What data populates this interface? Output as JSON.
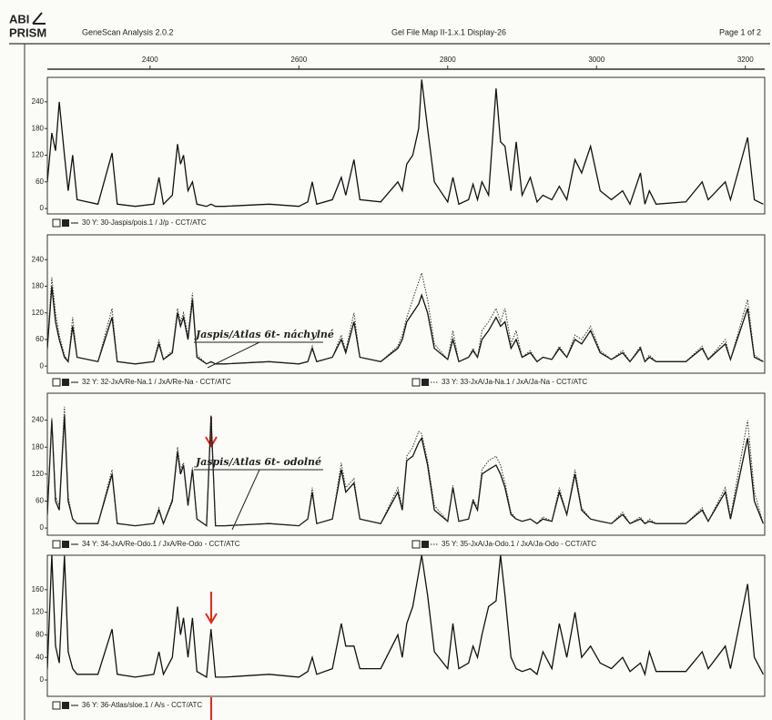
{
  "header": {
    "logo_top": "ABI",
    "logo_bottom": "PRISM",
    "software": "GeneScan Analysis 2.0.2",
    "file": "Gel File Map II-1.x.1 Display-26",
    "page": "Page 1 of 2"
  },
  "chart_data": [
    {
      "type": "line",
      "xlim": [
        2262,
        3226
      ],
      "xticks": [
        2400,
        2600,
        2800,
        3000,
        3200
      ],
      "ylim": [
        -12,
        295
      ],
      "yticks": [
        0,
        60,
        120,
        180,
        240
      ],
      "x": [
        2262,
        2268,
        2273,
        2278,
        2285,
        2290,
        2296,
        2302,
        2330,
        2349,
        2356,
        2380,
        2405,
        2412,
        2418,
        2430,
        2437,
        2441,
        2445,
        2451,
        2457,
        2463,
        2476,
        2482,
        2488,
        2500,
        2560,
        2600,
        2612,
        2618,
        2624,
        2645,
        2657,
        2663,
        2674,
        2682,
        2710,
        2733,
        2739,
        2745,
        2753,
        2761,
        2765,
        2773,
        2782,
        2800,
        2807,
        2815,
        2828,
        2834,
        2840,
        2846,
        2855,
        2865,
        2871,
        2877,
        2885,
        2892,
        2900,
        2911,
        2920,
        2928,
        2940,
        2950,
        2960,
        2971,
        2980,
        2992,
        3005,
        3020,
        3035,
        3045,
        3059,
        3065,
        3071,
        3080,
        3120,
        3142,
        3150,
        3173,
        3180,
        3203,
        3212,
        3224
      ],
      "series": [
        {
          "name": "30 Y: 30-Jaspis/pois.1 / J/p - CCT/ATC",
          "color": "#111111",
          "style": "solid",
          "values": [
            60,
            170,
            130,
            240,
            120,
            40,
            120,
            20,
            10,
            125,
            10,
            5,
            10,
            70,
            10,
            30,
            145,
            100,
            120,
            40,
            60,
            10,
            5,
            10,
            5,
            5,
            10,
            5,
            15,
            60,
            10,
            20,
            70,
            30,
            110,
            20,
            15,
            60,
            40,
            100,
            120,
            180,
            290,
            180,
            60,
            15,
            70,
            10,
            20,
            55,
            20,
            60,
            30,
            270,
            150,
            140,
            40,
            150,
            30,
            70,
            15,
            30,
            20,
            50,
            20,
            110,
            80,
            140,
            40,
            20,
            40,
            10,
            80,
            10,
            40,
            10,
            15,
            60,
            20,
            60,
            20,
            160,
            20,
            10
          ]
        }
      ]
    },
    {
      "type": "line",
      "xlim": [
        2262,
        3226
      ],
      "ylim": [
        -16,
        296
      ],
      "yticks": [
        0,
        60,
        120,
        180,
        240
      ],
      "annotation": "Jaspis/Atlas 6t- náchylné",
      "x": [
        2262,
        2268,
        2273,
        2278,
        2285,
        2290,
        2296,
        2302,
        2330,
        2349,
        2356,
        2380,
        2405,
        2412,
        2418,
        2430,
        2437,
        2441,
        2445,
        2451,
        2457,
        2463,
        2476,
        2482,
        2488,
        2500,
        2560,
        2600,
        2612,
        2618,
        2624,
        2645,
        2657,
        2663,
        2674,
        2682,
        2710,
        2733,
        2739,
        2745,
        2753,
        2761,
        2765,
        2773,
        2782,
        2800,
        2807,
        2815,
        2828,
        2834,
        2840,
        2846,
        2855,
        2865,
        2871,
        2877,
        2885,
        2892,
        2900,
        2911,
        2920,
        2928,
        2940,
        2950,
        2960,
        2971,
        2980,
        2992,
        3005,
        3020,
        3035,
        3045,
        3059,
        3065,
        3071,
        3080,
        3120,
        3142,
        3150,
        3173,
        3180,
        3203,
        3212,
        3224
      ],
      "series": [
        {
          "name": "32 Y: 32-JxA/Re-Na.1 / JxA/Re-Na - CCT/ATC",
          "color": "#111111",
          "style": "solid",
          "values": [
            40,
            180,
            100,
            60,
            20,
            10,
            90,
            20,
            10,
            110,
            10,
            5,
            10,
            50,
            15,
            30,
            120,
            90,
            110,
            60,
            150,
            20,
            5,
            10,
            5,
            5,
            10,
            5,
            10,
            40,
            10,
            20,
            60,
            30,
            100,
            20,
            10,
            40,
            60,
            100,
            120,
            140,
            160,
            120,
            40,
            15,
            60,
            10,
            20,
            35,
            20,
            60,
            80,
            110,
            90,
            100,
            40,
            60,
            20,
            30,
            10,
            20,
            15,
            40,
            20,
            60,
            50,
            80,
            30,
            15,
            30,
            10,
            40,
            10,
            20,
            10,
            10,
            40,
            15,
            50,
            15,
            130,
            20,
            10
          ]
        },
        {
          "name": "33 Y: 33-JxA/Ja-Na.1 / JxA/Ja-Na - CCT/ATC",
          "color": "#333333",
          "style": "dotted",
          "values": [
            50,
            200,
            120,
            70,
            25,
            10,
            110,
            20,
            10,
            130,
            10,
            5,
            10,
            60,
            15,
            35,
            130,
            100,
            120,
            70,
            165,
            25,
            5,
            10,
            5,
            5,
            10,
            5,
            10,
            45,
            10,
            20,
            70,
            35,
            120,
            20,
            10,
            45,
            70,
            110,
            150,
            190,
            210,
            150,
            50,
            15,
            80,
            10,
            20,
            40,
            20,
            80,
            100,
            130,
            100,
            130,
            50,
            80,
            20,
            35,
            10,
            20,
            15,
            45,
            20,
            70,
            60,
            90,
            35,
            15,
            35,
            10,
            45,
            10,
            25,
            10,
            10,
            45,
            15,
            60,
            15,
            150,
            25,
            10
          ]
        }
      ]
    },
    {
      "type": "line",
      "xlim": [
        2262,
        3226
      ],
      "ylim": [
        -16,
        300
      ],
      "yticks": [
        0,
        60,
        120,
        180,
        240
      ],
      "annotation": "Jaspis/Atlas 6t- odolné",
      "x": [
        2262,
        2268,
        2273,
        2278,
        2285,
        2290,
        2296,
        2302,
        2330,
        2349,
        2356,
        2380,
        2405,
        2412,
        2418,
        2430,
        2437,
        2441,
        2445,
        2451,
        2457,
        2463,
        2476,
        2482,
        2488,
        2500,
        2560,
        2600,
        2612,
        2618,
        2624,
        2645,
        2657,
        2663,
        2674,
        2682,
        2710,
        2733,
        2739,
        2745,
        2753,
        2761,
        2765,
        2773,
        2782,
        2800,
        2807,
        2815,
        2828,
        2834,
        2840,
        2846,
        2855,
        2865,
        2871,
        2877,
        2885,
        2892,
        2900,
        2911,
        2920,
        2928,
        2940,
        2950,
        2960,
        2971,
        2980,
        2992,
        3005,
        3020,
        3035,
        3045,
        3059,
        3065,
        3071,
        3080,
        3120,
        3142,
        3150,
        3173,
        3180,
        3203,
        3212,
        3224
      ],
      "series": [
        {
          "name": "34 Y: 34-JxA/Re-Odo.1 / JxA/Re-Odo - CCT/ATC",
          "color": "#111111",
          "style": "solid",
          "values": [
            30,
            240,
            60,
            40,
            250,
            60,
            20,
            10,
            10,
            120,
            10,
            5,
            10,
            40,
            10,
            60,
            170,
            120,
            140,
            50,
            130,
            20,
            5,
            250,
            5,
            5,
            10,
            5,
            20,
            80,
            10,
            20,
            130,
            80,
            100,
            20,
            10,
            80,
            40,
            150,
            160,
            190,
            200,
            140,
            40,
            15,
            90,
            15,
            20,
            60,
            40,
            120,
            130,
            140,
            120,
            90,
            30,
            20,
            15,
            20,
            10,
            20,
            15,
            80,
            30,
            120,
            40,
            20,
            15,
            10,
            30,
            10,
            20,
            10,
            15,
            10,
            10,
            40,
            15,
            80,
            20,
            200,
            60,
            10
          ]
        },
        {
          "name": "35 Y: 35-JxA/Ja-Odo.1 / JxA/Ja-Odo - CCT/ATC",
          "color": "#333333",
          "style": "dotted",
          "values": [
            35,
            245,
            70,
            50,
            270,
            70,
            20,
            10,
            10,
            130,
            10,
            5,
            10,
            45,
            10,
            65,
            180,
            130,
            145,
            55,
            135,
            20,
            5,
            250,
            5,
            5,
            10,
            5,
            20,
            90,
            10,
            20,
            145,
            90,
            110,
            20,
            10,
            90,
            45,
            160,
            180,
            215,
            210,
            150,
            50,
            15,
            95,
            15,
            20,
            65,
            45,
            130,
            150,
            160,
            140,
            100,
            35,
            20,
            15,
            20,
            10,
            25,
            15,
            90,
            30,
            130,
            45,
            20,
            15,
            10,
            35,
            10,
            25,
            10,
            20,
            10,
            10,
            45,
            15,
            90,
            25,
            240,
            80,
            10
          ]
        }
      ]
    },
    {
      "type": "line",
      "xlim": [
        2262,
        3226
      ],
      "ylim": [
        -29,
        221
      ],
      "yticks": [
        0,
        40,
        80,
        120,
        160
      ],
      "x": [
        2262,
        2268,
        2273,
        2278,
        2285,
        2290,
        2296,
        2302,
        2330,
        2349,
        2356,
        2380,
        2405,
        2412,
        2418,
        2430,
        2437,
        2441,
        2445,
        2451,
        2457,
        2463,
        2476,
        2482,
        2488,
        2500,
        2560,
        2600,
        2612,
        2618,
        2624,
        2645,
        2657,
        2663,
        2674,
        2682,
        2710,
        2733,
        2739,
        2745,
        2753,
        2761,
        2765,
        2773,
        2782,
        2800,
        2807,
        2815,
        2828,
        2834,
        2840,
        2846,
        2855,
        2865,
        2871,
        2877,
        2885,
        2892,
        2900,
        2911,
        2920,
        2928,
        2940,
        2950,
        2960,
        2971,
        2980,
        2992,
        3005,
        3020,
        3035,
        3045,
        3059,
        3065,
        3071,
        3080,
        3120,
        3142,
        3150,
        3173,
        3180,
        3203,
        3212,
        3224
      ],
      "series": [
        {
          "name": "36 Y: 36-Atlas/sloe.1 / A/s - CCT/ATC",
          "color": "#111111",
          "style": "solid",
          "values": [
            20,
            221,
            60,
            30,
            220,
            50,
            20,
            10,
            10,
            90,
            10,
            5,
            10,
            50,
            10,
            40,
            130,
            80,
            110,
            40,
            110,
            15,
            5,
            90,
            5,
            5,
            10,
            5,
            15,
            40,
            10,
            20,
            100,
            60,
            60,
            20,
            20,
            80,
            40,
            100,
            130,
            190,
            221,
            150,
            50,
            20,
            100,
            20,
            30,
            60,
            40,
            80,
            130,
            140,
            221,
            150,
            40,
            20,
            15,
            20,
            10,
            50,
            20,
            100,
            40,
            120,
            40,
            60,
            30,
            20,
            40,
            15,
            30,
            10,
            50,
            15,
            15,
            50,
            20,
            60,
            20,
            170,
            40,
            10
          ]
        }
      ]
    }
  ]
}
